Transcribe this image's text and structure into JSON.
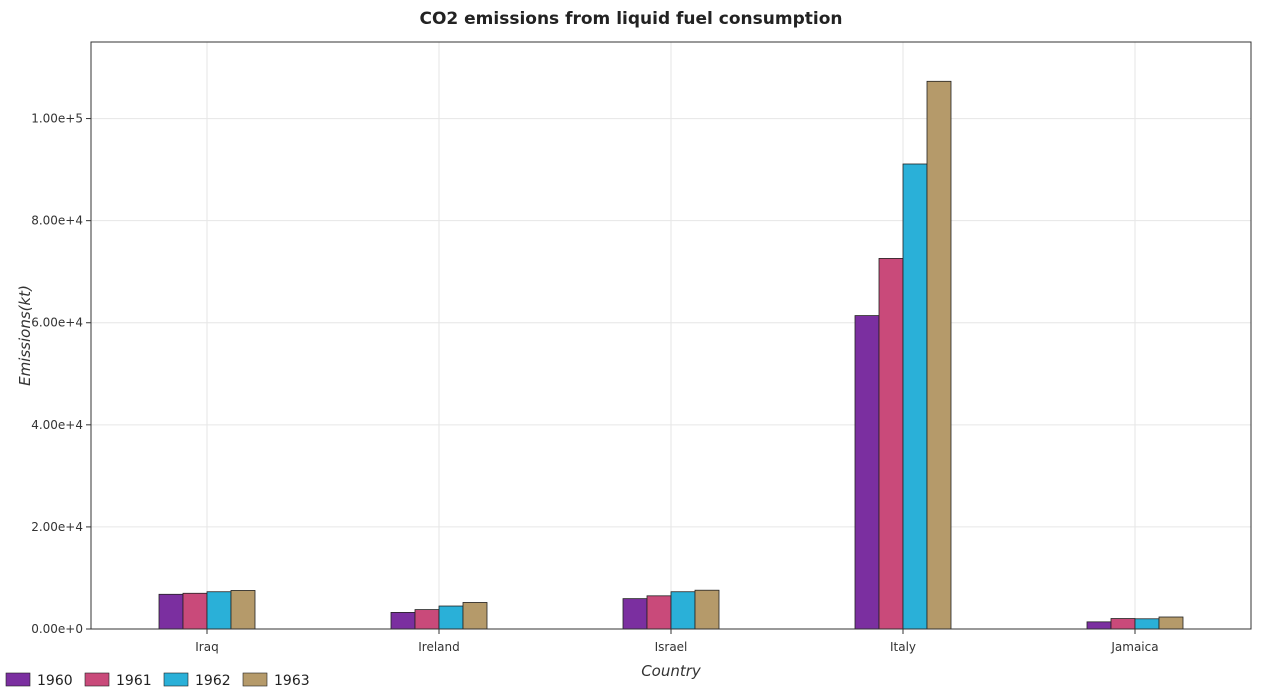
{
  "chart_data": {
    "type": "bar",
    "title": "CO2 emissions from liquid fuel consumption",
    "xlabel": "Country",
    "ylabel": "Emissions(kt)",
    "ylim": [
      0,
      115000
    ],
    "yticks": [
      0,
      20000,
      40000,
      60000,
      80000,
      100000
    ],
    "ytick_labels": [
      "0.00e+0",
      "2.00e+4",
      "4.00e+4",
      "6.00e+4",
      "8.00e+4",
      "1.00e+5"
    ],
    "categories": [
      "Iraq",
      "Ireland",
      "Israel",
      "Italy",
      "Jamaica"
    ],
    "series": [
      {
        "name": "1960",
        "color": "#7b2fa0",
        "values": [
          6800,
          3250,
          5950,
          61400,
          1400
        ]
      },
      {
        "name": "1961",
        "color": "#c94a7a",
        "values": [
          7000,
          3800,
          6500,
          72600,
          2050
        ]
      },
      {
        "name": "1962",
        "color": "#2ab0d8",
        "values": [
          7300,
          4500,
          7300,
          91100,
          2000
        ]
      },
      {
        "name": "1963",
        "color": "#b59a6a",
        "values": [
          7550,
          5200,
          7600,
          107300,
          2350
        ]
      }
    ],
    "legend_position": "bottom-left",
    "grid": true
  }
}
